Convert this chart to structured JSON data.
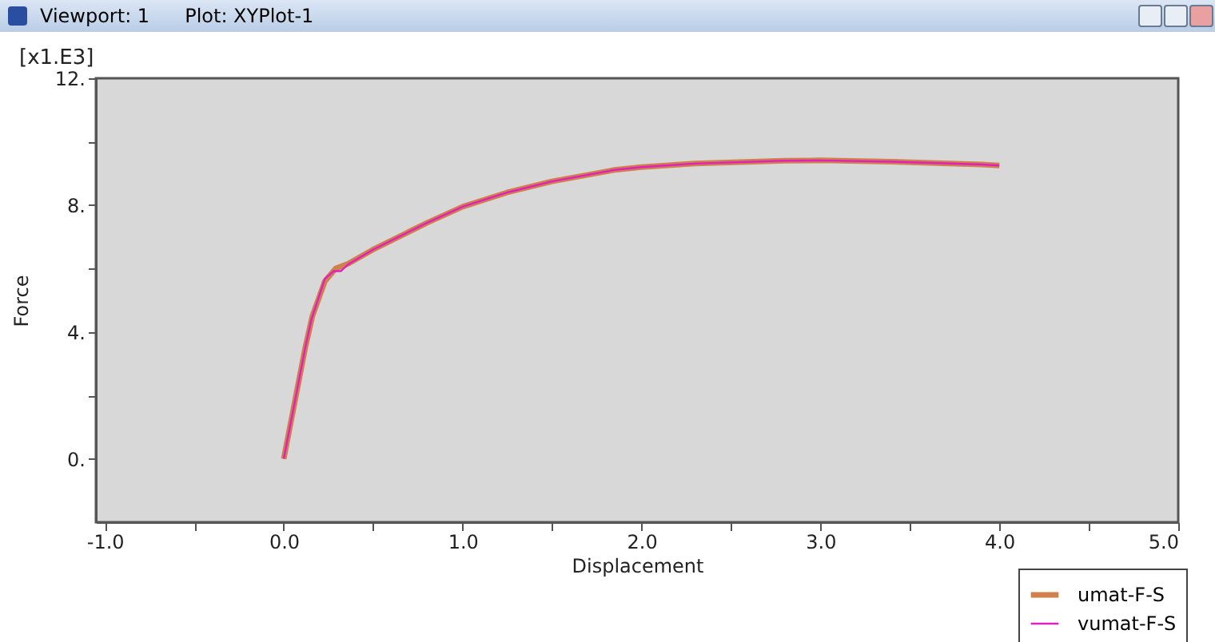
{
  "chart_data": {
    "type": "line",
    "title": "Viewport: 1",
    "subtitle": "Plot: XYPlot-1",
    "xlabel": "Displacement",
    "ylabel": "Force",
    "annotations": [
      "[x1.E3]"
    ],
    "xlim": [
      -1.05,
      5.0
    ],
    "ylim": [
      -2,
      12
    ],
    "xticks": [
      {
        "value": -1,
        "label": "-1.0"
      },
      {
        "value": -0.5,
        "label": null
      },
      {
        "value": 0,
        "label": "0.0"
      },
      {
        "value": 0.5,
        "label": null
      },
      {
        "value": 1,
        "label": "1.0"
      },
      {
        "value": 1.5,
        "label": null
      },
      {
        "value": 2,
        "label": "2.0"
      },
      {
        "value": 2.5,
        "label": null
      },
      {
        "value": 3,
        "label": "3.0"
      },
      {
        "value": 3.5,
        "label": null
      },
      {
        "value": 4,
        "label": "4.0"
      },
      {
        "value": 4.5,
        "label": null
      },
      {
        "value": 5,
        "label": "5.0"
      }
    ],
    "yticks": [
      {
        "value": 0,
        "label": "0."
      },
      {
        "value": 2,
        "label": null
      },
      {
        "value": 4,
        "label": "4."
      },
      {
        "value": 6,
        "label": null
      },
      {
        "value": 8,
        "label": "8."
      },
      {
        "value": 10,
        "label": null
      },
      {
        "value": 12,
        "label": "12."
      }
    ],
    "grid": false,
    "legend": "bottom right",
    "series": [
      {
        "name": "umat-F-S",
        "color": "#d0804a",
        "x": [
          0,
          0.12,
          0.16,
          0.23,
          0.29,
          0.36,
          0.5,
          0.8,
          1.0,
          1.25,
          1.5,
          1.85,
          2.0,
          2.3,
          2.8,
          3.0,
          3.4,
          3.9,
          4.0
        ],
        "values": [
          0,
          3.5,
          4.5,
          5.6,
          6.0,
          6.15,
          6.6,
          7.44,
          7.95,
          8.4,
          8.75,
          9.11,
          9.2,
          9.31,
          9.4,
          9.41,
          9.37,
          9.28,
          9.25
        ]
      },
      {
        "name": "vumat-F-S",
        "color": "#e020c0",
        "x": [
          0,
          0.12,
          0.155,
          0.23,
          0.28,
          0.32,
          0.36,
          0.5,
          0.8,
          1.0,
          1.25,
          1.5,
          1.85,
          2.0,
          2.3,
          2.8,
          3.0,
          3.4,
          3.9,
          4.0
        ],
        "values": [
          0,
          3.5,
          4.4,
          5.68,
          5.92,
          5.92,
          6.13,
          6.6,
          7.44,
          7.95,
          8.4,
          8.75,
          9.11,
          9.2,
          9.31,
          9.4,
          9.41,
          9.37,
          9.28,
          9.25
        ]
      }
    ]
  }
}
